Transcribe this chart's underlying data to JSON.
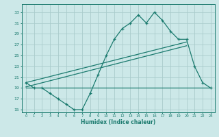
{
  "x": [
    0,
    1,
    2,
    3,
    4,
    5,
    6,
    7,
    8,
    9,
    10,
    11,
    12,
    13,
    14,
    15,
    16,
    17,
    18,
    19,
    20,
    21,
    22,
    23
  ],
  "y_main": [
    20,
    19,
    19,
    18,
    17,
    16,
    15,
    15,
    18,
    21.5,
    25,
    28,
    30,
    31,
    32.5,
    31,
    33,
    31.5,
    29.5,
    28,
    28,
    23,
    20,
    19
  ],
  "line1_x": [
    0,
    20
  ],
  "line1_y": [
    20.0,
    27.5
  ],
  "line2_x": [
    0,
    20
  ],
  "line2_y": [
    19.2,
    26.8
  ],
  "line3_x": [
    0,
    23
  ],
  "line3_y": [
    19.0,
    19.0
  ],
  "color": "#1a7a6e",
  "bg_color": "#cce8e8",
  "grid_color": "#aacccc",
  "xlabel": "Humidex (Indice chaleur)",
  "yticks": [
    15,
    17,
    19,
    21,
    23,
    25,
    27,
    29,
    31,
    33
  ],
  "xticks": [
    0,
    1,
    2,
    3,
    4,
    5,
    6,
    7,
    8,
    9,
    10,
    11,
    12,
    13,
    14,
    15,
    16,
    17,
    18,
    19,
    20,
    21,
    22,
    23
  ],
  "ylim": [
    14.5,
    34.5
  ],
  "xlim": [
    -0.5,
    23.5
  ]
}
